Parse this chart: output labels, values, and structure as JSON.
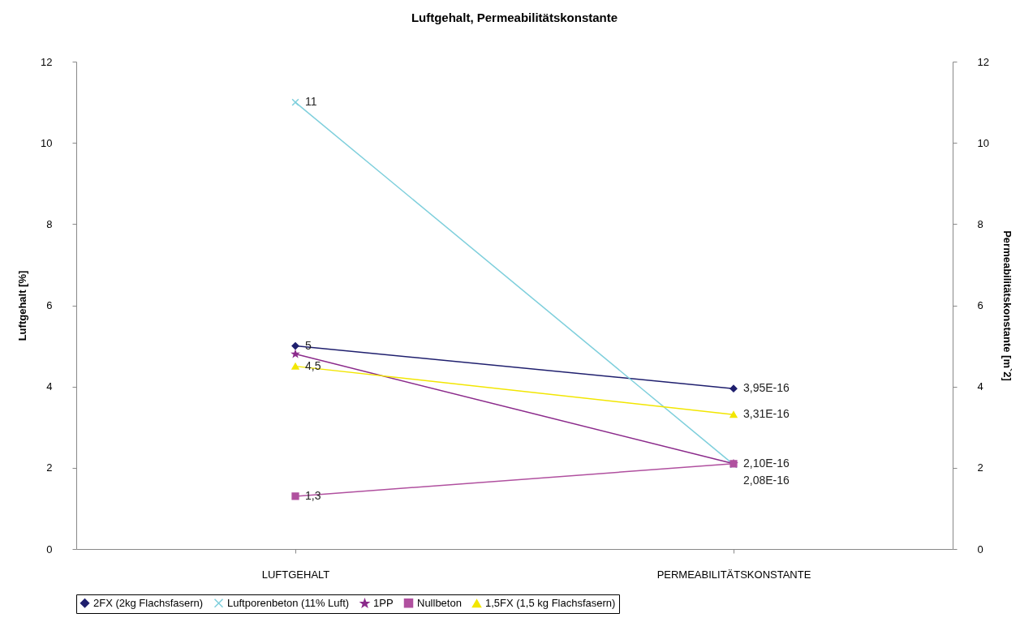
{
  "chart_data": {
    "type": "line",
    "title": "Luftgehalt, Permeabilitätskonstante",
    "categories": [
      "LUFTGEHALT",
      "PERMEABILITÄTSKONSTANTE"
    ],
    "ylabel": "Luftgehalt [%]",
    "y2label": "Permeabilitätskonstante [m`2]",
    "ylim": [
      0,
      12
    ],
    "yticks": [
      0,
      2,
      4,
      6,
      8,
      10,
      12
    ],
    "y2lim": [
      0,
      12
    ],
    "y2ticks": [
      0,
      2,
      4,
      6,
      8,
      10,
      12
    ],
    "grid": false,
    "legend": "bottom",
    "line_style": "solid",
    "series": [
      {
        "name": "2FX (2kg Flachsfasern)",
        "color": "#1f1f6e",
        "marker": "diamond",
        "values": [
          5,
          3.95
        ],
        "value_labels": [
          "5",
          "3,95E-16"
        ]
      },
      {
        "name": "Luftporenbeton (11% Luft)",
        "color": "#7ecfdc",
        "marker": "cross",
        "values": [
          11,
          2.08
        ],
        "value_labels": [
          "11",
          "2,08E-16"
        ]
      },
      {
        "name": "1PP",
        "color": "#8b2a8b",
        "marker": "star",
        "values": [
          4.8,
          2.1
        ],
        "value_labels": [
          null,
          null
        ]
      },
      {
        "name": "Nullbeton",
        "color": "#b0509f",
        "marker": "square",
        "values": [
          1.3,
          2.1
        ],
        "value_labels": [
          "1,3",
          "2,10E-16"
        ]
      },
      {
        "name": "1,5FX (1,5 kg Flachsfasern)",
        "color": "#f2e600",
        "marker": "triangle",
        "values": [
          4.5,
          3.31
        ],
        "value_labels": [
          "4,5",
          "3,31E-16"
        ]
      }
    ]
  }
}
